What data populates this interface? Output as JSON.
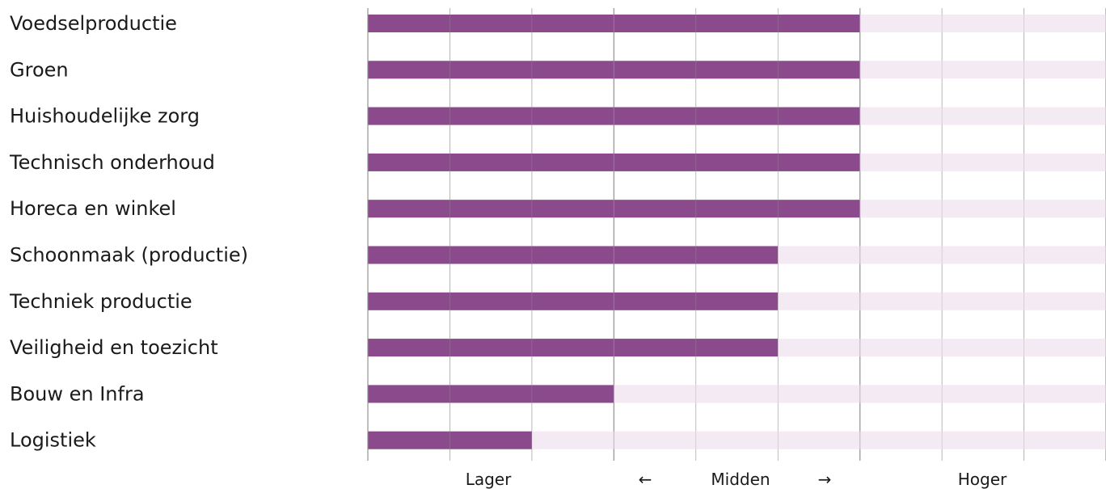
{
  "chart_data": {
    "type": "bar",
    "orientation": "horizontal",
    "categories": [
      "Voedselproductie",
      "Groen",
      "Huishoudelijke zorg",
      "Technisch onderhoud",
      "Horeca en winkel",
      "Schoonmaak (productie)",
      "Techniek productie",
      "Veiligheid en toezicht",
      "Bouw en Infra",
      "Logistiek"
    ],
    "values": [
      6,
      6,
      6,
      6,
      6,
      5,
      5,
      5,
      3,
      2
    ],
    "xlim": [
      0,
      9
    ],
    "grid": true,
    "colors": {
      "bar": "#8b4a8c",
      "track": "#f3eaf3",
      "grid": "#9a9a9a"
    },
    "axis_labels": {
      "left": "Lager",
      "left_arrow": "←",
      "center": "Midden",
      "right_arrow": "→",
      "right": "Hoger"
    }
  }
}
